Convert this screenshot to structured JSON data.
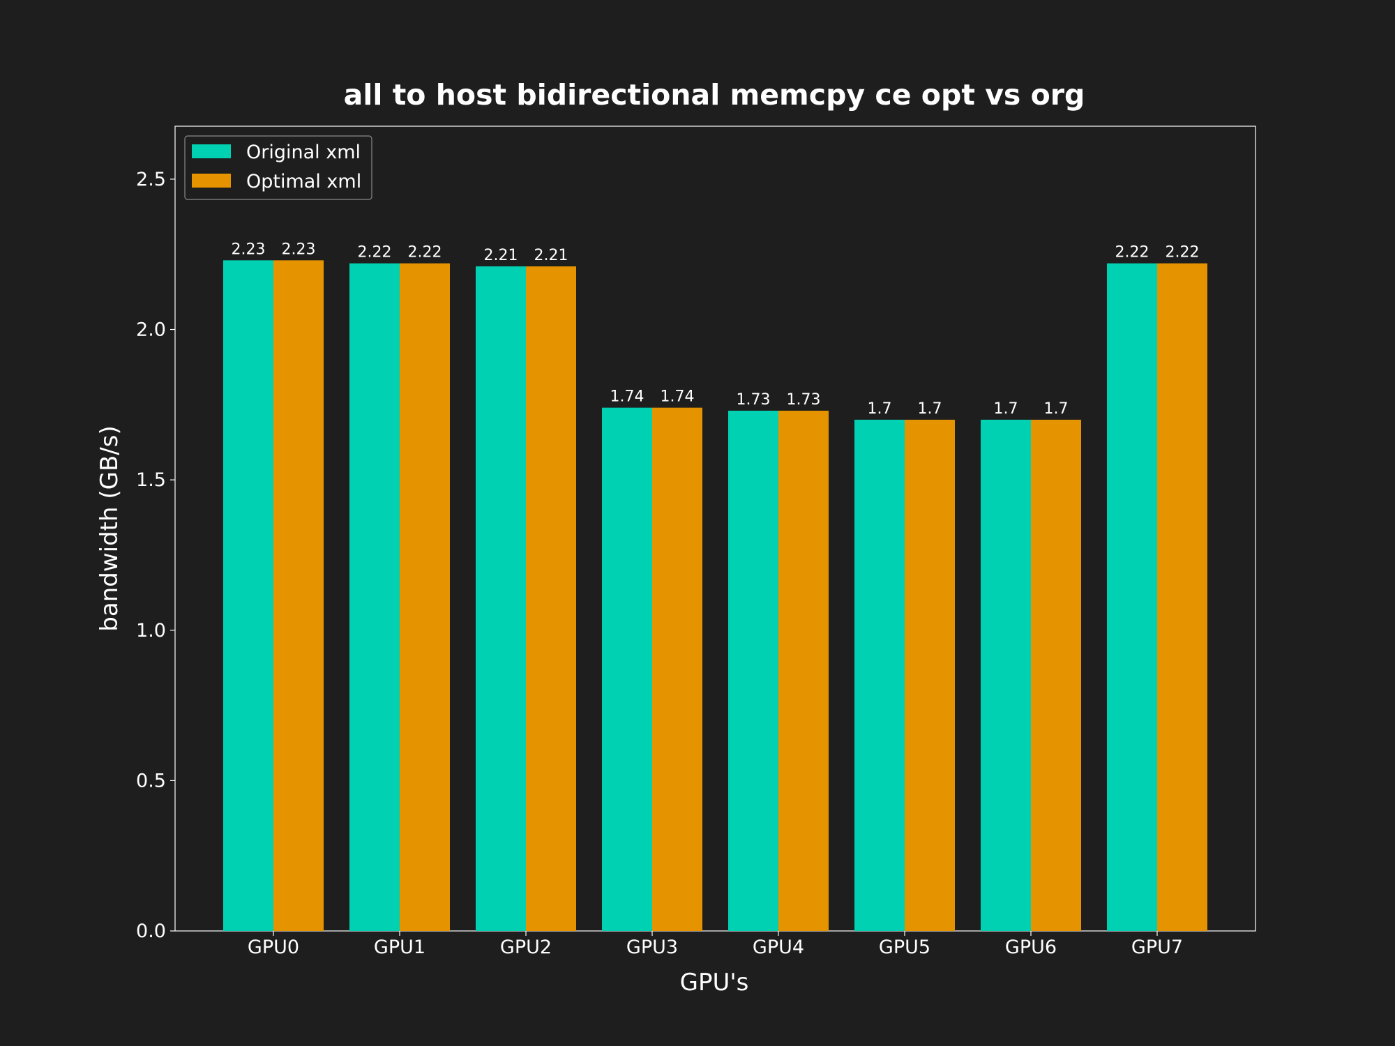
{
  "chart_data": {
    "type": "bar",
    "title": "all to host bidirectional memcpy ce opt vs org",
    "xlabel": "GPU's",
    "ylabel": "bandwidth (GB/s)",
    "categories": [
      "GPU0",
      "GPU1",
      "GPU2",
      "GPU3",
      "GPU4",
      "GPU5",
      "GPU6",
      "GPU7"
    ],
    "series": [
      {
        "name": "Original xml",
        "color": "#00d1b2",
        "values": [
          2.23,
          2.22,
          2.21,
          1.74,
          1.73,
          1.7,
          1.7,
          2.22
        ]
      },
      {
        "name": "Optimal xml",
        "color": "#e59400",
        "values": [
          2.23,
          2.22,
          2.21,
          1.74,
          1.73,
          1.7,
          1.7,
          2.22
        ]
      }
    ],
    "ylim": [
      0,
      2.676
    ],
    "yticks": [
      0.0,
      0.5,
      1.0,
      1.5,
      2.0,
      2.5
    ],
    "ytick_labels": [
      "0.0",
      "0.5",
      "1.0",
      "1.5",
      "2.0",
      "2.5"
    ],
    "data_labels": [
      "2.23",
      "2.22",
      "2.21",
      "1.74",
      "1.73",
      "1.7",
      "1.7",
      "2.22"
    ],
    "grid": false,
    "legend_position": "top-left",
    "background": "#1e1e1e",
    "text_color": "#ffffff",
    "frame_color": "#ffffff"
  }
}
